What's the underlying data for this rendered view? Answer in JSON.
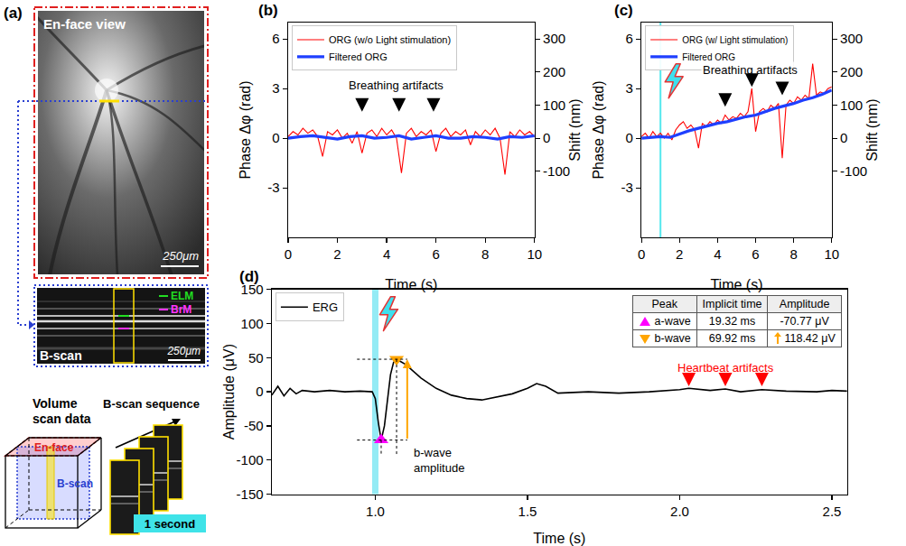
{
  "panel_a": {
    "label": "(a)",
    "en_face": {
      "title": "En-face view",
      "scale_bar": "250μm"
    },
    "b_scan": {
      "title": "B-scan",
      "scale_bar": "250μm",
      "layers": [
        {
          "name": "ELM",
          "color": "#22dd22"
        },
        {
          "name": "BrM",
          "color": "#ff33ff"
        }
      ]
    },
    "volume": {
      "title": "Volume scan data",
      "faces": [
        {
          "name": "En-face",
          "color": "#e02020"
        },
        {
          "name": "B-scan",
          "color": "#2a3fd0"
        }
      ]
    },
    "sequence": {
      "title": "B-scan sequence",
      "duration": "1 second"
    }
  },
  "chart_data": [
    {
      "panel": "(b)",
      "type": "line",
      "xlabel": "Time (s)",
      "ylabel": "Phase Δφ (rad)",
      "y2label": "Shift (nm)",
      "xlim": [
        0,
        10
      ],
      "xticks": [
        0,
        2,
        4,
        6,
        8,
        10
      ],
      "ylim": [
        -6,
        7
      ],
      "yticks": [
        -3,
        0,
        3,
        6
      ],
      "y2lim": [
        -300,
        350
      ],
      "y2ticks": [
        -100,
        0,
        100,
        200,
        300
      ],
      "grid": false,
      "legend": "upper left",
      "series": [
        {
          "name": "ORG (w/o Light stimulation)",
          "color": "#ff0000",
          "x": [
            0,
            0.2,
            0.4,
            0.6,
            0.8,
            1,
            1.2,
            1.4,
            1.6,
            1.8,
            2,
            2.2,
            2.4,
            2.6,
            2.8,
            3,
            3.2,
            3.4,
            3.6,
            3.8,
            4,
            4.2,
            4.4,
            4.6,
            4.8,
            5,
            5.2,
            5.4,
            5.6,
            5.8,
            6,
            6.2,
            6.4,
            6.6,
            6.8,
            7,
            7.2,
            7.4,
            7.6,
            7.8,
            8,
            8.2,
            8.4,
            8.6,
            8.8,
            9,
            9.2,
            9.4,
            9.6,
            9.8,
            10
          ],
          "values": [
            0.1,
            0.4,
            0.2,
            0.6,
            0.3,
            0.5,
            0.1,
            -1.1,
            0.4,
            0.2,
            0.5,
            0.0,
            0.3,
            -0.3,
            0.4,
            -0.9,
            0.3,
            0.5,
            0.1,
            0.6,
            0.2,
            0.5,
            0.0,
            -2.1,
            0.3,
            0.6,
            0.1,
            0.4,
            0.2,
            0.5,
            -0.8,
            0.3,
            0.6,
            0.1,
            0.4,
            0.2,
            0.5,
            -0.4,
            0.4,
            0.1,
            0.5,
            0.2,
            0.6,
            0.0,
            -2.2,
            0.4,
            0.1,
            0.5,
            0.2,
            0.4,
            0.1
          ]
        },
        {
          "name": "Filtered ORG",
          "color": "#1f3fff",
          "x": [
            0,
            0.5,
            1,
            1.5,
            2,
            2.5,
            3,
            3.5,
            4,
            4.5,
            5,
            5.5,
            6,
            6.5,
            7,
            7.5,
            8,
            8.5,
            9,
            9.5,
            10
          ],
          "values": [
            0,
            0.1,
            0.15,
            0.05,
            -0.05,
            0.1,
            0.15,
            0,
            0.05,
            0.15,
            -0.05,
            0.05,
            0.15,
            0,
            0,
            0.1,
            0.05,
            -0.05,
            0.1,
            0.05,
            0.15
          ]
        }
      ],
      "annotations": [
        {
          "text": "Breathing artifacts",
          "x": 4.4,
          "y": 3.2,
          "color": "#000000",
          "arrows": [
            {
              "x": 3.0,
              "y": 1.6
            },
            {
              "x": 4.5,
              "y": 1.6
            },
            {
              "x": 5.9,
              "y": 1.6
            }
          ]
        }
      ]
    },
    {
      "panel": "(c)",
      "type": "line",
      "xlabel": "Time (s)",
      "ylabel": "Phase Δφ (rad)",
      "y2label": "Shift (nm)",
      "xlim": [
        0,
        10
      ],
      "xticks": [
        0,
        2,
        4,
        6,
        8,
        10
      ],
      "ylim": [
        -6,
        7
      ],
      "yticks": [
        -3,
        0,
        3,
        6
      ],
      "y2lim": [
        -300,
        350
      ],
      "y2ticks": [
        -100,
        0,
        100,
        200,
        300
      ],
      "grid": false,
      "legend": "upper left",
      "stimulus": 1.0,
      "series": [
        {
          "name": "ORG (w/ Light stimulation)",
          "color": "#ff0000",
          "x": [
            0,
            0.2,
            0.4,
            0.6,
            0.8,
            1,
            1.2,
            1.4,
            1.6,
            1.8,
            2,
            2.2,
            2.4,
            2.6,
            2.8,
            3,
            3.2,
            3.4,
            3.6,
            3.8,
            4,
            4.2,
            4.4,
            4.6,
            4.8,
            5,
            5.2,
            5.4,
            5.6,
            5.8,
            6,
            6.2,
            6.4,
            6.6,
            6.8,
            7,
            7.2,
            7.4,
            7.6,
            7.8,
            8,
            8.2,
            8.4,
            8.6,
            8.8,
            9,
            9.2,
            9.4,
            9.6,
            9.8,
            10
          ],
          "values": [
            0.1,
            0.3,
            0.0,
            0.4,
            0.1,
            0.3,
            0.0,
            0.3,
            -0.1,
            0.5,
            0.8,
            1.0,
            0.6,
            0.8,
            0.5,
            -0.6,
            0.9,
            0.7,
            1.0,
            0.8,
            1.1,
            0.9,
            1.4,
            1.1,
            1.3,
            1.2,
            1.5,
            1.3,
            1.6,
            3.0,
            0.4,
            1.6,
            1.8,
            1.6,
            2.0,
            1.8,
            2.1,
            -1.2,
            2.0,
            2.3,
            2.1,
            2.5,
            2.3,
            2.6,
            2.4,
            4.5,
            2.6,
            2.8,
            2.7,
            3.0,
            3.1
          ]
        },
        {
          "name": "Filtered ORG",
          "color": "#1f3fff",
          "x": [
            0,
            0.5,
            1,
            1.5,
            2,
            2.5,
            3,
            3.5,
            4,
            4.5,
            5,
            5.5,
            6,
            6.5,
            7,
            7.5,
            8,
            8.5,
            9,
            9.5,
            10
          ],
          "values": [
            0,
            0.05,
            0.1,
            0.05,
            0.25,
            0.45,
            0.6,
            0.75,
            0.9,
            1.0,
            1.15,
            1.3,
            1.4,
            1.6,
            1.8,
            1.95,
            2.1,
            2.3,
            2.45,
            2.65,
            2.9
          ]
        }
      ],
      "annotations": [
        {
          "text": "Breathing artifacts",
          "x": 5.7,
          "y": 4.1,
          "color": "#000000",
          "arrows": [
            {
              "x": 4.4,
              "y": 1.9
            },
            {
              "x": 5.8,
              "y": 3.1
            },
            {
              "x": 7.4,
              "y": 2.6
            }
          ]
        }
      ]
    },
    {
      "panel": "(d)",
      "type": "line",
      "xlabel": "Time (s)",
      "ylabel": "Amplitude (μV)",
      "xlim": [
        0.66,
        2.55
      ],
      "xticks": [
        {
          "value": 1,
          "label": "1.0"
        },
        {
          "value": 1.5,
          "label": "1.5"
        },
        {
          "value": 2,
          "label": "2.0"
        },
        {
          "value": 2.5,
          "label": "2.5"
        }
      ],
      "ylim": [
        -150,
        150
      ],
      "yticks": [
        -150,
        -100,
        -50,
        0,
        50,
        100,
        150
      ],
      "grid": false,
      "legend": "upper left",
      "stimulus": 1.0,
      "series": [
        {
          "name": "ERG",
          "color": "#000000",
          "x": [
            0.66,
            0.68,
            0.7,
            0.72,
            0.74,
            0.76,
            0.8,
            0.85,
            0.9,
            0.95,
            0.99,
            1.0,
            1.01,
            1.0193,
            1.03,
            1.04,
            1.05,
            1.06,
            1.0699,
            1.08,
            1.1,
            1.15,
            1.2,
            1.25,
            1.3,
            1.35,
            1.4,
            1.45,
            1.5,
            1.53,
            1.56,
            1.6,
            1.7,
            1.8,
            1.9,
            2.0,
            2.03,
            2.1,
            2.15,
            2.2,
            2.27,
            2.35,
            2.45,
            2.5,
            2.55
          ],
          "values": [
            -5,
            8,
            -6,
            5,
            -3,
            2,
            0,
            2,
            0,
            1,
            0,
            -10,
            -45,
            -70.77,
            -50,
            -10,
            25,
            43,
            47.65,
            45,
            40,
            20,
            5,
            -5,
            -10,
            -12,
            -8,
            -3,
            5,
            12,
            8,
            -2,
            0,
            -2,
            0,
            3,
            5,
            2,
            4,
            0,
            3,
            1,
            0,
            2,
            1
          ]
        }
      ],
      "peaks": [
        {
          "name": "a-wave",
          "implicit_time": 19.32,
          "amplitude": -70.77,
          "color": "#ff00ff",
          "marker": "triangle-up"
        },
        {
          "name": "b-wave",
          "implicit_time": 69.92,
          "amplitude": 118.42,
          "color": "#ffa500",
          "marker": "triangle-down"
        }
      ],
      "table": {
        "columns": [
          "Peak",
          "Implicit time",
          "Amplitude"
        ],
        "rows": [
          [
            "a-wave",
            "19.32 ms",
            "-70.77 μV"
          ],
          [
            "b-wave",
            "69.92 ms",
            "118.42 μV"
          ]
        ]
      },
      "annotations": [
        {
          "text": "b-wave amplitude",
          "x": 1.12,
          "y": -100,
          "color": "#000000"
        },
        {
          "text": "Heartbeat artifacts",
          "x": 2.15,
          "y": 35,
          "color": "#ff0000",
          "arrows": [
            {
              "x": 2.03,
              "y": 8
            },
            {
              "x": 2.15,
              "y": 8
            },
            {
              "x": 2.27,
              "y": 8
            }
          ]
        }
      ]
    }
  ]
}
